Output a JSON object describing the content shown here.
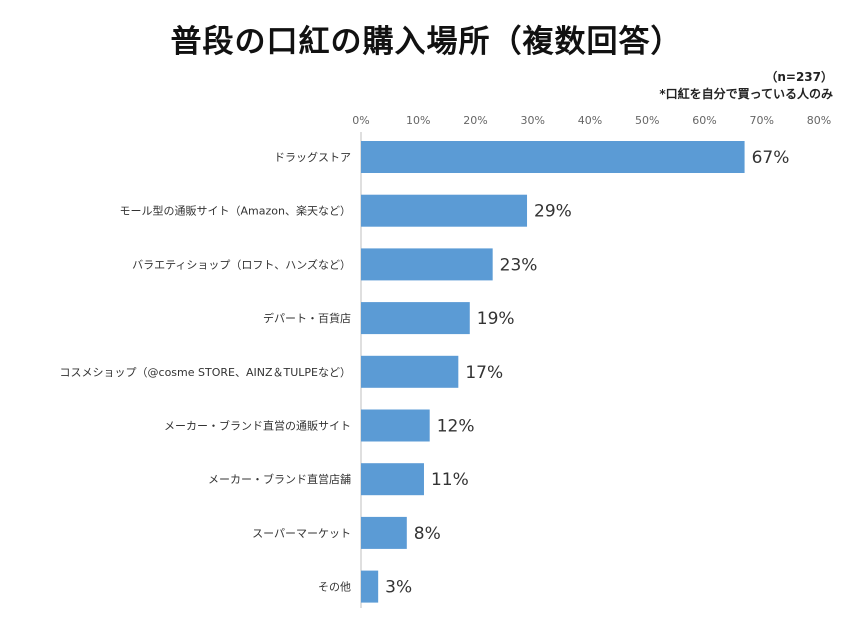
{
  "title": "普段の口紅の購入場所（複数回答）",
  "notes": [
    "（n=237）",
    "*口紅を自分で買っている人のみ"
  ],
  "colors": {
    "bar": "#5b9bd5"
  },
  "chart_data": {
    "type": "bar",
    "orientation": "horizontal",
    "title": "普段の口紅の購入場所（複数回答）",
    "xlim": [
      0,
      80
    ],
    "xticks": [
      0,
      10,
      20,
      30,
      40,
      50,
      60,
      70,
      80
    ],
    "tick_suffix": "%",
    "grid": false,
    "categories": [
      "ドラッグストア",
      "モール型の通販サイト（Amazon、楽天など）",
      "バラエティショップ（ロフト、ハンズなど）",
      "デパート・百貨店",
      "コスメショップ（@cosme STORE、AINZ＆TULPEなど）",
      "メーカー・ブランド直営の通販サイト",
      "メーカー・ブランド直営店舗",
      "スーパーマーケット",
      "その他"
    ],
    "values": [
      67,
      29,
      23,
      19,
      17,
      12,
      11,
      8,
      3
    ],
    "value_labels": [
      "67%",
      "29%",
      "23%",
      "19%",
      "17%",
      "12%",
      "11%",
      "8%",
      "3%"
    ]
  }
}
